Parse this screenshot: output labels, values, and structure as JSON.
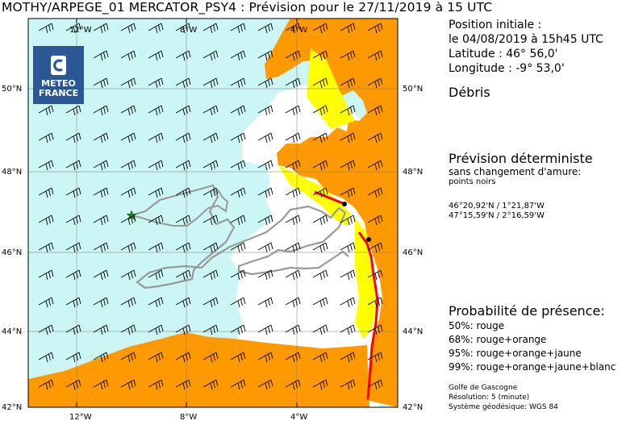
{
  "header": {
    "title": "MOTHY/ARPEGE_01 MERCATOR_PSY4   : Prévision pour le 27/11/2019 à 15 UTC"
  },
  "logo": {
    "icon": "meteo-france-logo-icon",
    "line1": "METEO",
    "line2": "FRANCE",
    "color": "#2b5797"
  },
  "map": {
    "top_labels": [
      "12°W",
      "8°W",
      "4°W"
    ],
    "bottom_labels": [
      "12°W",
      "8°W",
      "4°W"
    ],
    "left_labels": [
      "50°N",
      "48°N",
      "46°N",
      "44°N",
      "42°N"
    ],
    "right_labels": [
      "50°N",
      "48°N",
      "46°N",
      "44°N",
      "42°N"
    ],
    "colors": {
      "land": "#ff9900",
      "sea_tinted": "#ccf5f5",
      "sea": "#ffffff",
      "red": "#ff0000",
      "yellow": "#ffff00",
      "track": "#999999",
      "start_marker": "#1a8a1a"
    }
  },
  "initial": {
    "heading": "Position initiale :",
    "date": "le 04/08/2019 à 15h45 UTC",
    "lat": "Latitude : 46° 56,0'",
    "lon": "Longitude : -9° 53,0'"
  },
  "object": "Débris",
  "deterministic": {
    "heading": "Prévision déterministe",
    "subtitle": "sans changement d'amure:",
    "note": "points noirs",
    "point1": "46°20,92'N / 1°21,87'W",
    "point2": "47°15,59'N / 2°16,59'W"
  },
  "probability": {
    "heading": "Probabilité de présence:",
    "lines": [
      "50%: rouge",
      "68%: rouge+orange",
      "95%: rouge+orange+jaune",
      "99%: rouge+orange+jaune+blanc"
    ]
  },
  "footer": {
    "zone": "Golfe de Gascogne",
    "resolution": "Résolution: 5 (minute)",
    "geodetic": "Système géodésique: WGS 84"
  }
}
